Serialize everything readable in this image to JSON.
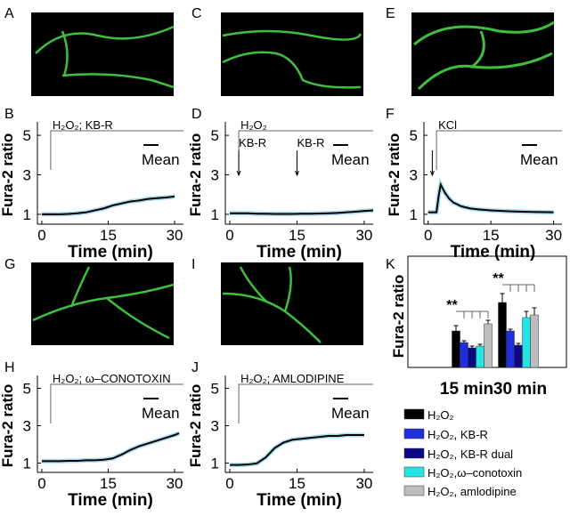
{
  "image_panels": [
    {
      "label": "A"
    },
    {
      "label": "C"
    },
    {
      "label": "E"
    },
    {
      "label": "G"
    },
    {
      "label": "I"
    }
  ],
  "chart_data": [
    {
      "type": "line",
      "label": "B",
      "y_label": "Fura-2 ratio",
      "x_label": "Time (min)",
      "stimulus": "H₂O₂; KB-R",
      "stimulus_start": 2,
      "xlim": [
        -1,
        32
      ],
      "ylim": [
        0.5,
        5.5
      ],
      "xticks": [
        0,
        15,
        30
      ],
      "yticks": [
        1,
        3,
        5
      ],
      "x": [
        0,
        2,
        4,
        6,
        8,
        10,
        12,
        14,
        16,
        18,
        20,
        22,
        24,
        26,
        28,
        30
      ],
      "series": [
        {
          "name": "Mean",
          "color": "#000000",
          "values": [
            1,
            1,
            1,
            1.02,
            1.05,
            1.1,
            1.2,
            1.3,
            1.45,
            1.55,
            1.65,
            1.7,
            1.78,
            1.82,
            1.85,
            1.9
          ]
        }
      ]
    },
    {
      "type": "line",
      "label": "D",
      "y_label": "Fura-2 ratio",
      "x_label": "Time (min)",
      "stimulus": "H₂O₂",
      "stimulus_start": 2,
      "arrows": [
        {
          "x": 2,
          "label": "KB-R"
        },
        {
          "x": 15,
          "label": "KB-R"
        }
      ],
      "xlim": [
        -1,
        32
      ],
      "ylim": [
        0.5,
        5.5
      ],
      "xticks": [
        0,
        15,
        30
      ],
      "yticks": [
        1,
        3,
        5
      ],
      "x": [
        0,
        2,
        4,
        6,
        8,
        10,
        12,
        14,
        16,
        18,
        20,
        22,
        24,
        26,
        28,
        30,
        32
      ],
      "series": [
        {
          "name": "Mean",
          "color": "#000000",
          "values": [
            1.05,
            1.05,
            1.05,
            1.03,
            1.03,
            1.02,
            1.02,
            1.02,
            1.03,
            1.03,
            1.04,
            1.05,
            1.07,
            1.1,
            1.13,
            1.17,
            1.2
          ]
        }
      ]
    },
    {
      "type": "line",
      "label": "F",
      "y_label": "Fura-2 ratio",
      "x_label": "Time (min)",
      "stimulus": "KCl",
      "stimulus_start": 2,
      "arrows": [
        {
          "x": 1
        }
      ],
      "xlim": [
        -1,
        32
      ],
      "ylim": [
        0.5,
        5.5
      ],
      "xticks": [
        0,
        15,
        30
      ],
      "yticks": [
        1,
        3,
        5
      ],
      "x": [
        0,
        1,
        2,
        2.5,
        3,
        4,
        5,
        6,
        8,
        10,
        12,
        15,
        20,
        25,
        30
      ],
      "series": [
        {
          "name": "Mean",
          "color": "#000000",
          "values": [
            1.1,
            1.1,
            1.1,
            1.9,
            2.5,
            2.1,
            1.8,
            1.6,
            1.4,
            1.3,
            1.25,
            1.2,
            1.15,
            1.12,
            1.1
          ]
        }
      ]
    },
    {
      "type": "line",
      "label": "H",
      "y_label": "Fura-2 ratio",
      "x_label": "Time (min)",
      "stimulus": "H₂O₂; ω–CONOTOXIN",
      "stimulus_start": 2,
      "xlim": [
        -1,
        32
      ],
      "ylim": [
        0.5,
        5.5
      ],
      "xticks": [
        0,
        15,
        30
      ],
      "yticks": [
        1,
        3,
        5
      ],
      "x": [
        0,
        2,
        4,
        6,
        8,
        10,
        12,
        14,
        16,
        18,
        20,
        22,
        24,
        26,
        28,
        30,
        31
      ],
      "series": [
        {
          "name": "Mean",
          "color": "#000000",
          "values": [
            1.1,
            1.1,
            1.1,
            1.12,
            1.12,
            1.15,
            1.15,
            1.18,
            1.25,
            1.45,
            1.7,
            1.9,
            2.05,
            2.2,
            2.35,
            2.5,
            2.6
          ]
        }
      ]
    },
    {
      "type": "line",
      "label": "J",
      "y_label": "Fura-2 ratio",
      "x_label": "Time (min)",
      "stimulus": "H₂O₂; AMLODIPINE",
      "stimulus_start": 2,
      "xlim": [
        -1,
        32
      ],
      "ylim": [
        0.5,
        5.5
      ],
      "xticks": [
        0,
        15,
        30
      ],
      "yticks": [
        1,
        3,
        5
      ],
      "x": [
        0,
        2,
        4,
        6,
        8,
        10,
        12,
        14,
        16,
        18,
        20,
        22,
        24,
        26,
        28,
        30
      ],
      "series": [
        {
          "name": "Mean",
          "color": "#000000",
          "values": [
            0.9,
            0.9,
            0.92,
            0.98,
            1.3,
            1.8,
            2.1,
            2.25,
            2.3,
            2.35,
            2.4,
            2.45,
            2.45,
            2.5,
            2.5,
            2.5
          ]
        }
      ]
    },
    {
      "type": "grouped_bar",
      "label": "K",
      "y_label": "Fura-2 ratio",
      "ylim": [
        0,
        1.05
      ],
      "categories": [
        "15 min",
        "30 min"
      ],
      "significance": [
        {
          "category": 0,
          "text": "**"
        },
        {
          "category": 1,
          "text": "**"
        }
      ],
      "series": [
        {
          "name": "H₂O₂",
          "color": "#000000",
          "values": [
            0.41,
            0.73
          ],
          "errors": [
            0.06,
            0.1
          ]
        },
        {
          "name": "H₂O₂, KB-R",
          "color": "#1f2fe0",
          "values": [
            0.28,
            0.41
          ],
          "errors": [
            0.02,
            0.02
          ]
        },
        {
          "name": "H₂O₂, KB-R dual",
          "color": "#0a0a80",
          "values": [
            0.22,
            0.25
          ],
          "errors": [
            0.02,
            0.02
          ]
        },
        {
          "name": "H₂O₂,ω–conotoxin",
          "color": "#22e6e6",
          "values": [
            0.24,
            0.56
          ],
          "errors": [
            0.02,
            0.07
          ]
        },
        {
          "name": "H₂O₂, amlodipine",
          "color": "#bdbdbd",
          "values": [
            0.49,
            0.59
          ],
          "errors": [
            0.04,
            0.08
          ]
        }
      ]
    }
  ]
}
